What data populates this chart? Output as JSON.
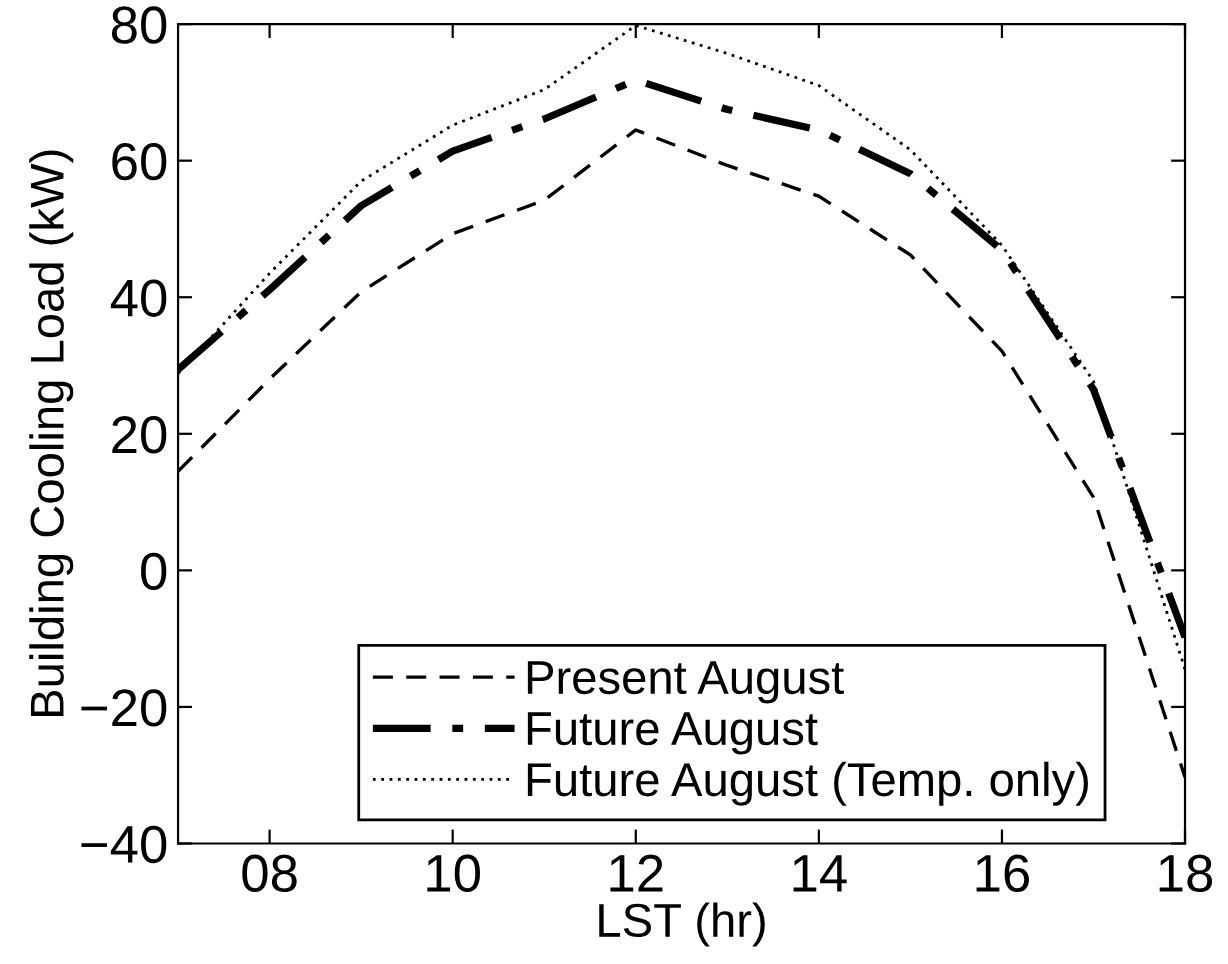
{
  "chart_data": {
    "type": "line",
    "xlabel": "LST (hr)",
    "ylabel": "Building Cooling Load (kW)",
    "x": [
      7,
      8,
      9,
      10,
      11,
      12,
      13,
      14,
      15,
      16,
      17,
      18
    ],
    "xlim": [
      7,
      18
    ],
    "xticks": [
      {
        "value": 8,
        "label": "08"
      },
      10,
      12,
      14,
      16,
      18
    ],
    "ylim": [
      -40,
      80
    ],
    "yticks": [
      {
        "value": -40,
        "label": "−40"
      },
      {
        "value": -20,
        "label": "−20"
      },
      0,
      20,
      40,
      60,
      80
    ],
    "grid": false,
    "legend": "bottom",
    "marker": "none",
    "series": [
      {
        "name": "Present August",
        "color": "#000000",
        "line_style": "dashed",
        "values": [
          14.5,
          28,
          40.8,
          49.3,
          54.2,
          64.5,
          59.3,
          54.8,
          46.2,
          32.1,
          10.7,
          -30.3
        ]
      },
      {
        "name": "Future August",
        "color": "#000000",
        "line_style": "dashdot",
        "values": [
          29.4,
          41.1,
          53.4,
          61.4,
          66.1,
          71.8,
          67.5,
          64.5,
          58.1,
          46.9,
          26.5,
          -9.8
        ]
      },
      {
        "name": "Future August (Temp. only)",
        "color": "#000000",
        "line_style": "dotted",
        "values": [
          28.8,
          43.5,
          57,
          65.2,
          70.4,
          79.8,
          75.7,
          71,
          61.6,
          47.6,
          27.7,
          -14.5
        ]
      }
    ]
  }
}
